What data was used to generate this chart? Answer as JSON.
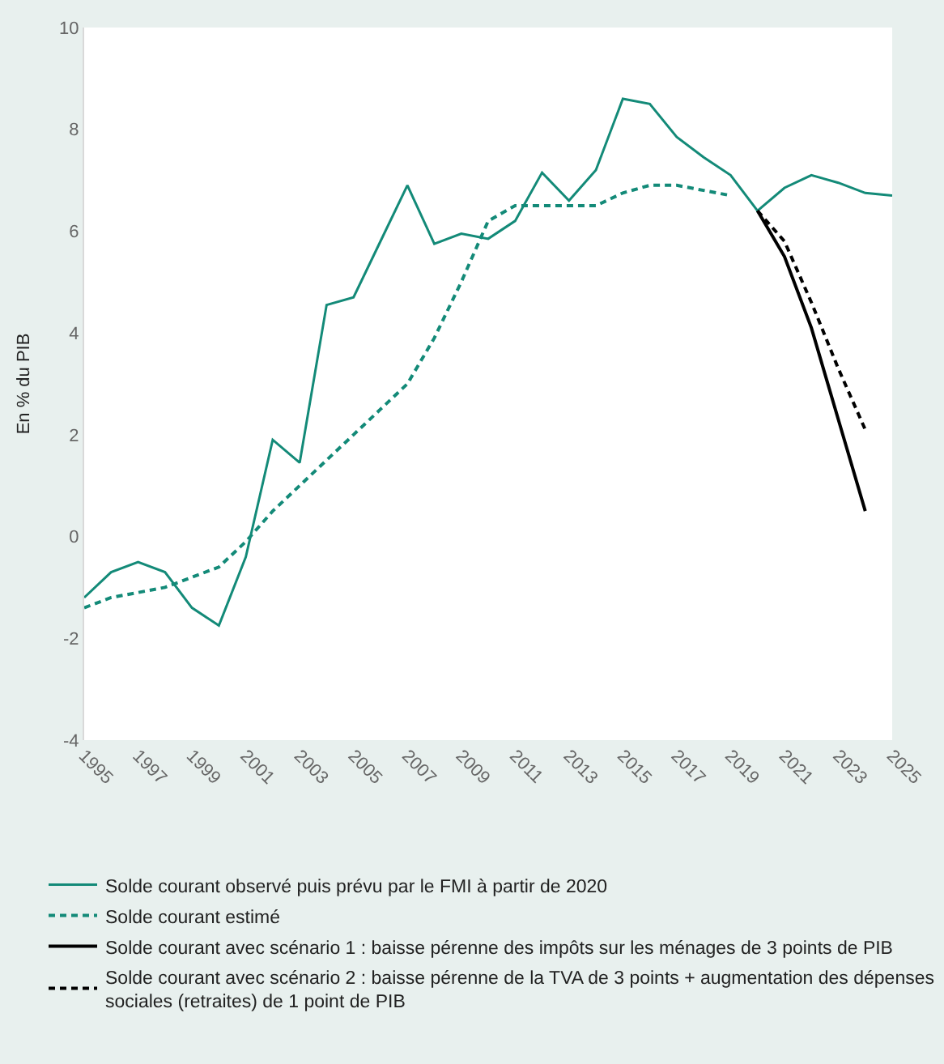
{
  "chart_data": {
    "type": "line",
    "ylabel": "En % du PIB",
    "x": [
      1995,
      1996,
      1997,
      1998,
      1999,
      2000,
      2001,
      2002,
      2003,
      2004,
      2005,
      2006,
      2007,
      2008,
      2009,
      2010,
      2011,
      2012,
      2013,
      2014,
      2015,
      2016,
      2017,
      2018,
      2019,
      2020,
      2021,
      2022,
      2023,
      2024,
      2025
    ],
    "series": [
      {
        "name": "Solde courant observé puis prévu par le FMI à partir de 2020",
        "color": "#138a78",
        "line_style": "solid",
        "values": [
          -1.2,
          -0.7,
          -0.5,
          -0.7,
          -1.4,
          -1.75,
          -0.4,
          1.9,
          1.45,
          4.55,
          4.7,
          5.8,
          6.9,
          5.75,
          5.95,
          5.85,
          6.2,
          7.15,
          6.6,
          7.2,
          8.6,
          8.5,
          7.85,
          7.45,
          7.1,
          6.4,
          6.85,
          7.1,
          6.95,
          6.75,
          6.7
        ]
      },
      {
        "name": "Solde courant estimé",
        "color": "#138a78",
        "line_style": "dashed",
        "x": [
          1995,
          1996,
          1997,
          1998,
          1999,
          2000,
          2001,
          2002,
          2003,
          2004,
          2005,
          2006,
          2007,
          2008,
          2009,
          2010,
          2011,
          2012,
          2013,
          2014,
          2015,
          2016,
          2017,
          2018,
          2019
        ],
        "values": [
          -1.4,
          -1.2,
          -1.1,
          -1.0,
          -0.8,
          -0.6,
          -0.1,
          0.5,
          1.0,
          1.5,
          2.0,
          2.5,
          3.0,
          3.9,
          5.0,
          6.2,
          6.5,
          6.5,
          6.5,
          6.5,
          6.75,
          6.9,
          6.9,
          6.8,
          6.7
        ]
      },
      {
        "name": "Solde courant avec scénario 1 : baisse pérenne des impôts sur les ménages de 3 points de PIB",
        "color": "#000000",
        "line_style": "solid",
        "x": [
          2020,
          2021,
          2022,
          2023,
          2024
        ],
        "values": [
          6.4,
          5.5,
          4.1,
          2.3,
          0.5
        ]
      },
      {
        "name": "Solde courant avec scénario 2 : baisse pérenne de la TVA de 3 points + augmentation des dépenses sociales (retraites) de 1 point de PIB",
        "color": "#000000",
        "line_style": "dashed",
        "x": [
          2020,
          2021,
          2022,
          2023,
          2024
        ],
        "values": [
          6.4,
          5.8,
          4.6,
          3.3,
          2.1
        ]
      }
    ],
    "xlim": [
      1995,
      2025
    ],
    "xticks": [
      1995,
      1997,
      1999,
      2001,
      2003,
      2005,
      2007,
      2009,
      2011,
      2013,
      2015,
      2017,
      2019,
      2021,
      2023,
      2025
    ],
    "ylim": [
      -4,
      10
    ],
    "yticks": [
      -4,
      -2,
      0,
      2,
      4,
      6,
      8,
      10
    ],
    "legend": "bottom",
    "marker": "none"
  }
}
